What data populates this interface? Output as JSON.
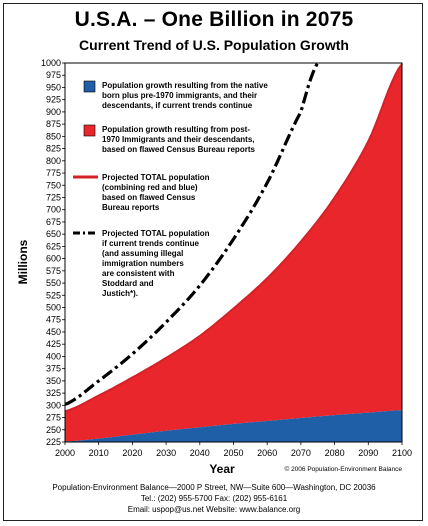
{
  "chart_data": {
    "type": "area",
    "title": "U.S.A. – One Billion in 2075",
    "subtitle": "Current Trend of U.S. Population Growth",
    "xlabel": "Year",
    "ylabel": "Millions",
    "xlim": [
      2000,
      2100
    ],
    "ylim": [
      225,
      1000
    ],
    "x": [
      2000,
      2010,
      2020,
      2030,
      2040,
      2050,
      2060,
      2070,
      2080,
      2090,
      2100
    ],
    "x_ticks": [
      "2000",
      "2010",
      "2020",
      "2030",
      "2040",
      "2050",
      "2060",
      "2070",
      "2080",
      "2090",
      "2100"
    ],
    "y_ticks": [
      "225",
      "250",
      "275",
      "300",
      "325",
      "350",
      "375",
      "400",
      "425",
      "450",
      "475",
      "500",
      "525",
      "550",
      "575",
      "600",
      "625",
      "650",
      "675",
      "700",
      "725",
      "750",
      "775",
      "800",
      "825",
      "850",
      "875",
      "900",
      "925",
      "950",
      "975",
      "1000"
    ],
    "series": [
      {
        "role": "blue_area",
        "color": "#1f5fa8",
        "legend": "Population growth resulting from the native born plus pre-1970 immigrants, and their descendants, if current trends continue",
        "values": [
          226,
          232,
          240,
          248,
          255,
          262,
          268,
          274,
          280,
          285,
          290
        ]
      },
      {
        "role": "red_area_total",
        "color": "#e8262b",
        "legend": "Population growth resulting from post-1970 immigrants and their descendants, based on flawed Census Bureau reports",
        "values": [
          288,
          320,
          357,
          397,
          442,
          498,
          560,
          635,
          725,
          840,
          998
        ]
      },
      {
        "role": "total_line",
        "color": "#d42127",
        "legend": "Projected TOTAL population (combining red and blue) based on flawed Census Bureau reports",
        "values": [
          288,
          320,
          357,
          397,
          442,
          498,
          560,
          635,
          725,
          840,
          998
        ]
      },
      {
        "role": "trend_line",
        "color": "#000000",
        "dash": "dash-dot",
        "legend": "Projected TOTAL population if current trends continue (and assuming illegal immigration numbers are consistent with Stoddard and Justich*).",
        "x": [
          2000,
          2010,
          2020,
          2030,
          2040,
          2050,
          2060,
          2070,
          2075
        ],
        "values": [
          302,
          350,
          405,
          470,
          545,
          640,
          755,
          900,
          1000
        ]
      }
    ],
    "credit": "© 2006 Population-Environment Balance",
    "grid": false,
    "legend_placement": "top-left"
  },
  "legend_lines": [
    [
      "Population growth resulting from the native",
      "born plus pre-1970 immigrants, and their",
      "descendants, if current  trends continue"
    ],
    [
      "Population growth resulting from post-",
      "1970 Immigrants and their descendants,",
      "based on flawed Census Bureau reports"
    ],
    [
      "Projected TOTAL population",
      "(combining red and blue)",
      "based on flawed Census",
      "Bureau reports"
    ],
    [
      "Projected TOTAL population",
      "if current trends continue",
      "(and assuming illegal",
      "immigration numbers",
      "are consistent with",
      "Stoddard and",
      "Justich*)."
    ]
  ],
  "footer": {
    "line1": "Population-Environment Balance—2000 P Street, NW—Suite 600—Washington, DC 20036",
    "line2": "Tel.: (202) 955-5700    Fax: (202) 955-6161",
    "line3": "Email: uspop@us.net    Website: www.balance.org"
  }
}
